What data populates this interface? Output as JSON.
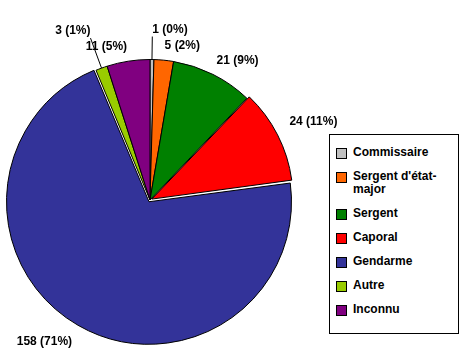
{
  "chart_data": {
    "type": "pie",
    "categories": [
      "Commissaire",
      "Sergent d'état-major",
      "Sergent",
      "Caporal",
      "Gendarme",
      "Autre",
      "Inconnu"
    ],
    "values": [
      1,
      5,
      21,
      24,
      158,
      3,
      11
    ],
    "value_labels": [
      "1 (0%)",
      "5 (2%)",
      "21 (9%)",
      "24 (11%)",
      "158 (71%)",
      "3 (1%)",
      "11 (5%)"
    ],
    "colors": [
      "#c0c0c0",
      "#ff6600",
      "#008000",
      "#ff0000",
      "#333399",
      "#99cc00",
      "#800080"
    ],
    "data_labels": true,
    "legend": "right"
  }
}
